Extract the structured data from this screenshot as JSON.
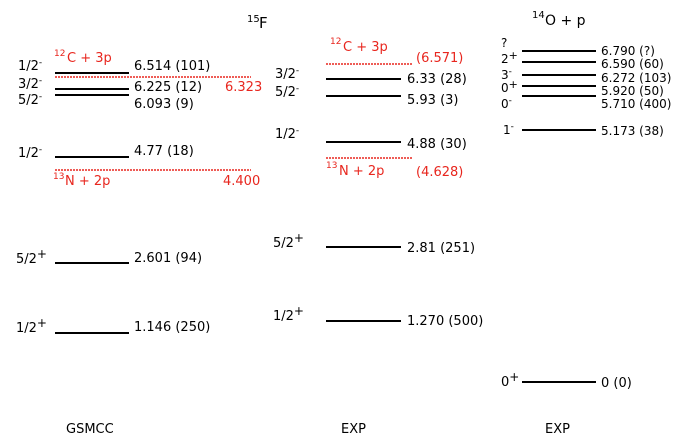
{
  "colors": {
    "level": "#000000",
    "threshold": "#e8261e"
  },
  "header": {
    "center": {
      "base": "F",
      "sup": "15"
    },
    "right": {
      "base": "O + p",
      "sup": "14"
    }
  },
  "columns": [
    {
      "id": "gsmcc",
      "label": "GSMCC",
      "levels": [
        {
          "jpi_base": "1/2",
          "jpi_sup": "-",
          "value": "6.514 (101)",
          "energy": 6.514
        },
        {
          "jpi_base": "3/2",
          "jpi_sup": "-",
          "value": "6.225 (12)",
          "energy": 6.225
        },
        {
          "jpi_base": "5/2",
          "jpi_sup": "-",
          "value": "6.093 (9)",
          "energy": 6.093
        },
        {
          "jpi_base": "1/2",
          "jpi_sup": "-",
          "value": "4.77 (18)",
          "energy": 4.77
        },
        {
          "jpi_base": "5/2",
          "jpi_sup": "+",
          "value": "2.601 (94)",
          "energy": 2.601
        },
        {
          "jpi_base": "1/2",
          "jpi_sup": "+",
          "value": "1.146 (250)",
          "energy": 1.146
        }
      ],
      "thresholds": [
        {
          "label_sup": "12",
          "label_base": "C + 3p",
          "value": "6.323",
          "energy": 6.323
        },
        {
          "label_sup": "13",
          "label_base": "N + 2p",
          "value": "4.400",
          "energy": 4.4
        }
      ]
    },
    {
      "id": "exp-15f",
      "label": "EXP",
      "levels": [
        {
          "jpi_base": "3/2",
          "jpi_sup": "-",
          "value": "6.33 (28)",
          "energy": 6.33
        },
        {
          "jpi_base": "5/2",
          "jpi_sup": "-",
          "value": "5.93 (3)",
          "energy": 5.93
        },
        {
          "jpi_base": "1/2",
          "jpi_sup": "-",
          "value": "4.88 (30)",
          "energy": 4.88
        },
        {
          "jpi_base": "5/2",
          "jpi_sup": "+",
          "value": "2.81 (251)",
          "energy": 2.81
        },
        {
          "jpi_base": "1/2",
          "jpi_sup": "+",
          "value": "1.270 (500)",
          "energy": 1.27
        }
      ],
      "thresholds": [
        {
          "label_sup": "12",
          "label_base": "C + 3p",
          "value": "(6.571)",
          "energy": 6.571
        },
        {
          "label_sup": "13",
          "label_base": "N + 2p",
          "value": "(4.628)",
          "energy": 4.628
        }
      ]
    },
    {
      "id": "exp-14o",
      "label": "EXP",
      "levels": [
        {
          "jpi_base": "?",
          "jpi_sup": "",
          "value": "6.790 (?)",
          "energy": 6.79
        },
        {
          "jpi_base": "2",
          "jpi_sup": "+",
          "value": "6.590 (60)",
          "energy": 6.59
        },
        {
          "jpi_base": "3",
          "jpi_sup": "-",
          "value": "6.272 (103)",
          "energy": 6.272
        },
        {
          "jpi_base": "0",
          "jpi_sup": "+",
          "value": "5.920 (50)",
          "energy": 5.92
        },
        {
          "jpi_base": "0",
          "jpi_sup": "-",
          "value": "5.710 (400)",
          "energy": 5.71
        },
        {
          "jpi_base": "1",
          "jpi_sup": "-",
          "value": "5.173 (38)",
          "energy": 5.173
        },
        {
          "jpi_base": "0",
          "jpi_sup": "+",
          "value": "0 (0)",
          "energy": 0
        }
      ],
      "thresholds": []
    }
  ]
}
